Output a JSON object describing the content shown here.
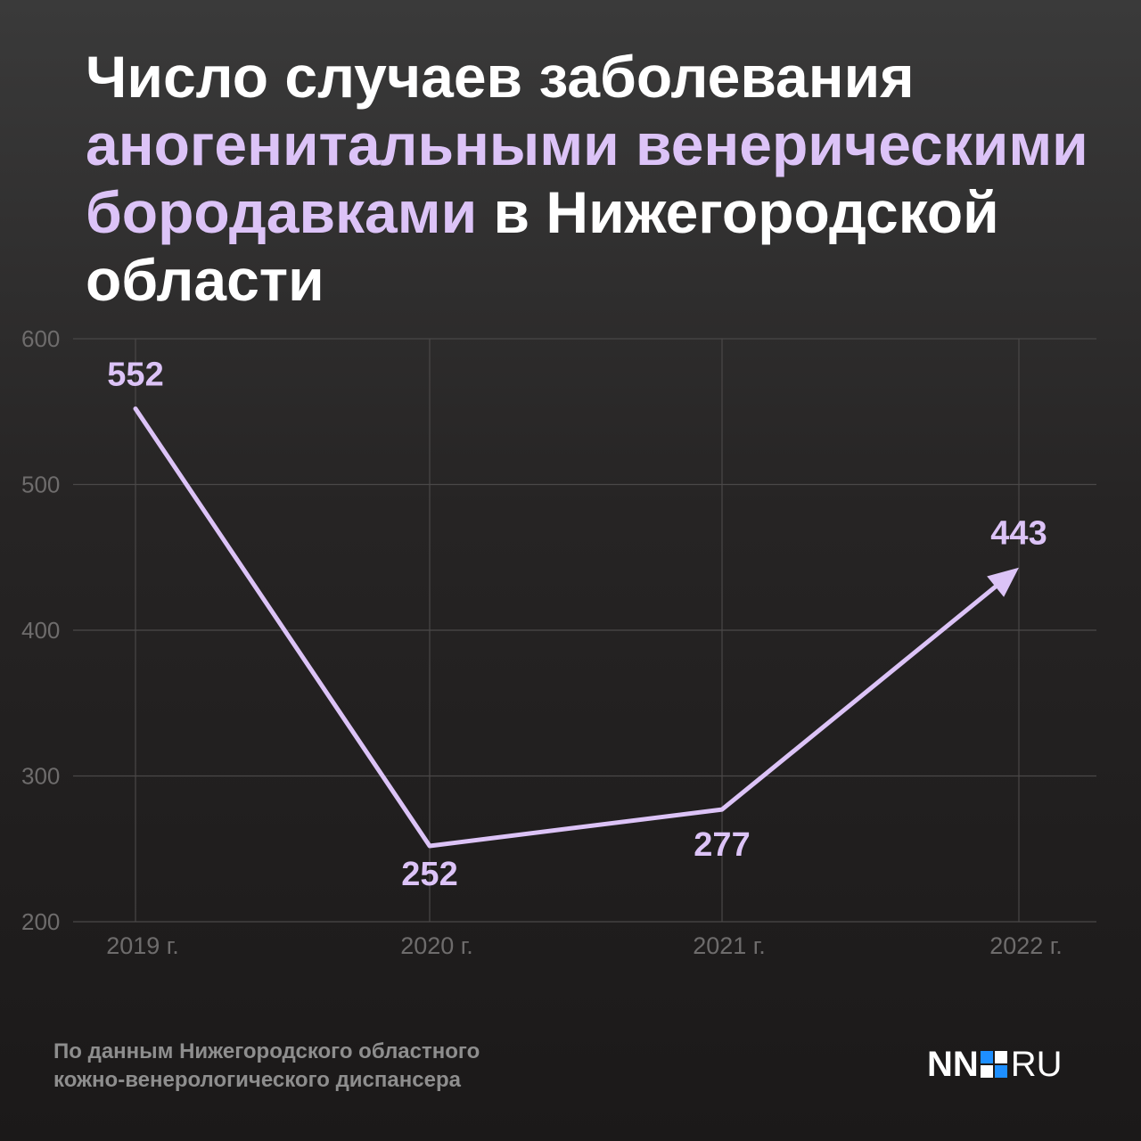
{
  "title": {
    "part1": "Число случаев заболевания ",
    "highlight1": "аногенитальными венерическими бородавками",
    "part2": " в Нижегородской области"
  },
  "source": {
    "line1": "По данным Нижегородского областного",
    "line2": "кожно-венерологического диспансера"
  },
  "logo": {
    "left": "NN",
    "right": "RU"
  },
  "colors": {
    "line": "#dcc3f7",
    "grid": "#4a4848",
    "axis_text": "#6e6c6c"
  },
  "chart_data": {
    "type": "line",
    "categories": [
      "2019 г.",
      "2020 г.",
      "2021 г.",
      "2022 г."
    ],
    "values": [
      552,
      252,
      277,
      443
    ],
    "data_labels": [
      "552",
      "252",
      "277",
      "443"
    ],
    "ylim": [
      200,
      600
    ],
    "yticks": [
      200,
      300,
      400,
      500,
      600
    ],
    "ytick_labels": [
      "200",
      "300",
      "400",
      "500",
      "600"
    ],
    "grid": true,
    "end_arrow": true
  }
}
